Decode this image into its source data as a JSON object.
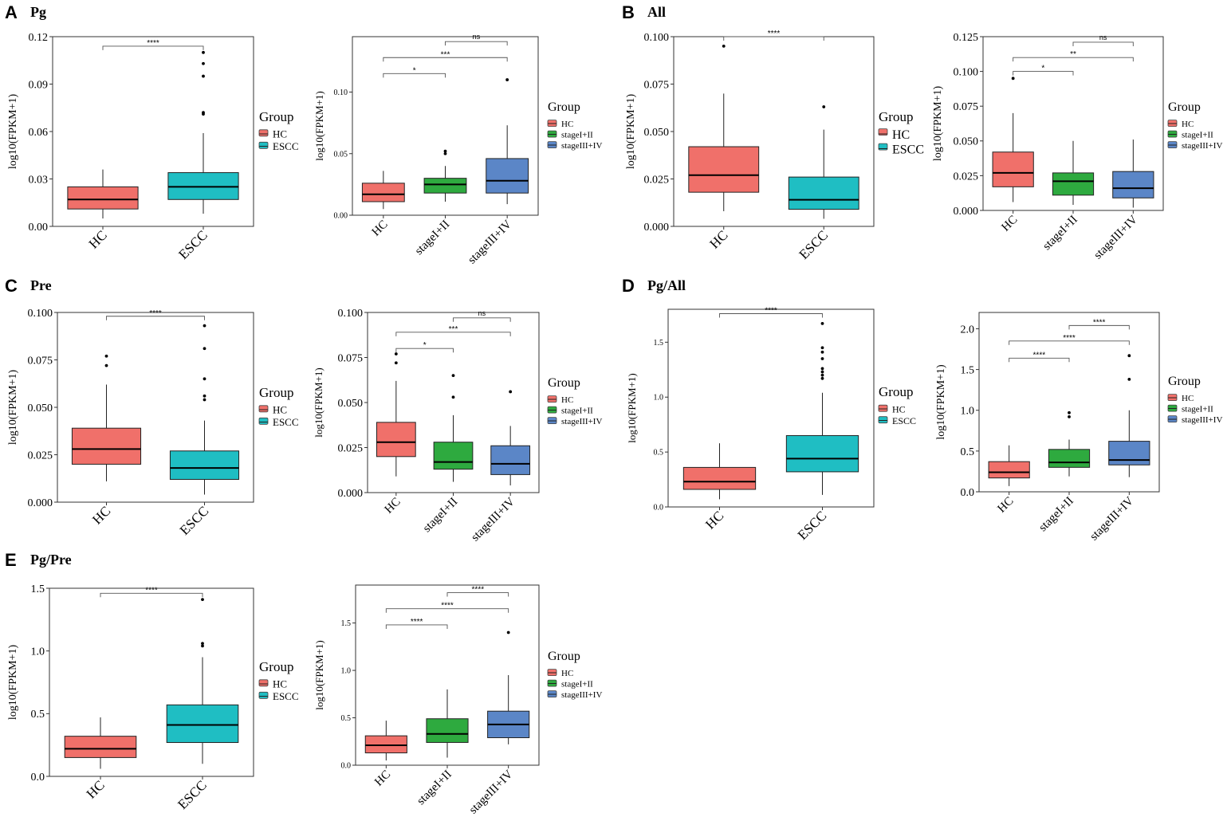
{
  "colors": {
    "HC": "#F0706A",
    "ESCC": "#1FBEC3",
    "stageI+II": "#2EAA3F",
    "stageIII+IV": "#5B86C7"
  },
  "panels": [
    {
      "letter": "A",
      "title": "Pg"
    },
    {
      "letter": "B",
      "title": "All"
    },
    {
      "letter": "C",
      "title": "Pre"
    },
    {
      "letter": "D",
      "title": "Pg/All"
    },
    {
      "letter": "E",
      "title": "Pg/Pre"
    }
  ],
  "chart_data": [
    {
      "id": "A-group",
      "panel": "A",
      "type": "box",
      "ylabel": "log10(FPKM+1)",
      "legend_title": "Group",
      "legend": [
        "HC",
        "ESCC"
      ],
      "categories": [
        "HC",
        "ESCC"
      ],
      "ylim": [
        0,
        0.12
      ],
      "yticks": [
        0,
        0.03,
        0.06,
        0.09,
        0.12
      ],
      "ytick_labels": [
        "0.00",
        "0.03",
        "0.06",
        "0.09",
        "0.12"
      ],
      "boxes": [
        {
          "group": "HC",
          "whisker_low": 0.005,
          "q1": 0.011,
          "median": 0.017,
          "q3": 0.025,
          "whisker_high": 0.036,
          "outliers": []
        },
        {
          "group": "ESCC",
          "whisker_low": 0.008,
          "q1": 0.017,
          "median": 0.025,
          "q3": 0.034,
          "whisker_high": 0.059,
          "outliers": [
            0.071,
            0.072,
            0.095,
            0.103,
            0.11
          ]
        }
      ],
      "comparisons": [
        {
          "from": "HC",
          "to": "ESCC",
          "y": 0.114,
          "label": "****"
        }
      ]
    },
    {
      "id": "A-stage",
      "panel": "A",
      "type": "box",
      "ylabel": "log10(FPKM+1)",
      "legend_title": "Group",
      "legend": [
        "HC",
        "stageI+II",
        "stageIII+IV"
      ],
      "categories": [
        "HC",
        "stageI+II",
        "stageIII+IV"
      ],
      "ylim": [
        0,
        0.145
      ],
      "yticks": [
        0,
        0.05,
        0.1
      ],
      "ytick_labels": [
        "0.00",
        "0.05",
        "0.10"
      ],
      "boxes": [
        {
          "group": "HC",
          "whisker_low": 0.005,
          "q1": 0.011,
          "median": 0.017,
          "q3": 0.026,
          "whisker_high": 0.036,
          "outliers": []
        },
        {
          "group": "stageI+II",
          "whisker_low": 0.011,
          "q1": 0.018,
          "median": 0.025,
          "q3": 0.03,
          "whisker_high": 0.04,
          "outliers": [
            0.05,
            0.052
          ]
        },
        {
          "group": "stageIII+IV",
          "whisker_low": 0.009,
          "q1": 0.018,
          "median": 0.028,
          "q3": 0.046,
          "whisker_high": 0.073,
          "outliers": [
            0.11
          ]
        }
      ],
      "comparisons": [
        {
          "from": "HC",
          "to": "stageI+II",
          "y": 0.115,
          "label": "*"
        },
        {
          "from": "HC",
          "to": "stageIII+IV",
          "y": 0.128,
          "label": "***"
        },
        {
          "from": "stageI+II",
          "to": "stageIII+IV",
          "y": 0.141,
          "label": "ns"
        }
      ]
    },
    {
      "id": "B-group",
      "panel": "B",
      "type": "box",
      "ylabel": "log10(FPKM+1)",
      "legend_title": "Group",
      "legend": [
        "HC",
        "ESCC"
      ],
      "categories": [
        "HC",
        "ESCC"
      ],
      "ylim": [
        0,
        0.1
      ],
      "yticks": [
        0,
        0.025,
        0.05,
        0.075,
        0.1
      ],
      "ytick_labels": [
        "0.000",
        "0.025",
        "0.050",
        "0.075",
        "0.100"
      ],
      "boxes": [
        {
          "group": "HC",
          "whisker_low": 0.008,
          "q1": 0.018,
          "median": 0.027,
          "q3": 0.042,
          "whisker_high": 0.07,
          "outliers": [
            0.095
          ]
        },
        {
          "group": "ESCC",
          "whisker_low": 0.004,
          "q1": 0.009,
          "median": 0.014,
          "q3": 0.026,
          "whisker_high": 0.051,
          "outliers": [
            0.063
          ]
        }
      ],
      "comparisons": [
        {
          "from": "HC",
          "to": "ESCC",
          "y": 0.1,
          "label": "****"
        }
      ]
    },
    {
      "id": "B-stage",
      "panel": "B",
      "type": "box",
      "ylabel": "log10(FPKM+1)",
      "legend_title": "Group",
      "legend": [
        "HC",
        "stageI+II",
        "stageIII+IV"
      ],
      "categories": [
        "HC",
        "stageI+II",
        "stageIII+IV"
      ],
      "ylim": [
        0,
        0.125
      ],
      "yticks": [
        0,
        0.025,
        0.05,
        0.075,
        0.1,
        0.125
      ],
      "ytick_labels": [
        "0.000",
        "0.025",
        "0.050",
        "0.075",
        "0.100",
        "0.125"
      ],
      "boxes": [
        {
          "group": "HC",
          "whisker_low": 0.006,
          "q1": 0.017,
          "median": 0.027,
          "q3": 0.042,
          "whisker_high": 0.07,
          "outliers": [
            0.095
          ]
        },
        {
          "group": "stageI+II",
          "whisker_low": 0.004,
          "q1": 0.011,
          "median": 0.021,
          "q3": 0.027,
          "whisker_high": 0.05,
          "outliers": []
        },
        {
          "group": "stageIII+IV",
          "whisker_low": 0.002,
          "q1": 0.009,
          "median": 0.016,
          "q3": 0.028,
          "whisker_high": 0.051,
          "outliers": []
        }
      ],
      "comparisons": [
        {
          "from": "HC",
          "to": "stageI+II",
          "y": 0.1,
          "label": "*"
        },
        {
          "from": "HC",
          "to": "stageIII+IV",
          "y": 0.11,
          "label": "**"
        },
        {
          "from": "stageI+II",
          "to": "stageIII+IV",
          "y": 0.121,
          "label": "ns"
        }
      ]
    },
    {
      "id": "C-group",
      "panel": "C",
      "type": "box",
      "ylabel": "log10(FPKM+1)",
      "legend_title": "Group",
      "legend": [
        "HC",
        "ESCC"
      ],
      "categories": [
        "HC",
        "ESCC"
      ],
      "ylim": [
        0,
        0.1
      ],
      "yticks": [
        0,
        0.025,
        0.05,
        0.075,
        0.1
      ],
      "ytick_labels": [
        "0.000",
        "0.025",
        "0.050",
        "0.075",
        "0.100"
      ],
      "boxes": [
        {
          "group": "HC",
          "whisker_low": 0.011,
          "q1": 0.02,
          "median": 0.028,
          "q3": 0.039,
          "whisker_high": 0.062,
          "outliers": [
            0.072,
            0.077
          ]
        },
        {
          "group": "ESCC",
          "whisker_low": 0.004,
          "q1": 0.012,
          "median": 0.018,
          "q3": 0.027,
          "whisker_high": 0.043,
          "outliers": [
            0.054,
            0.056,
            0.065,
            0.081,
            0.093
          ]
        }
      ],
      "comparisons": [
        {
          "from": "HC",
          "to": "ESCC",
          "y": 0.098,
          "label": "****"
        }
      ]
    },
    {
      "id": "C-stage",
      "panel": "C",
      "type": "box",
      "ylabel": "log10(FPKM+1)",
      "legend_title": "Group",
      "legend": [
        "HC",
        "stageI+II",
        "stageIII+IV"
      ],
      "categories": [
        "HC",
        "stageI+II",
        "stageIII+IV"
      ],
      "ylim": [
        0,
        0.1
      ],
      "yticks": [
        0,
        0.025,
        0.05,
        0.075,
        0.1
      ],
      "ytick_labels": [
        "0.000",
        "0.025",
        "0.050",
        "0.075",
        "0.100"
      ],
      "boxes": [
        {
          "group": "HC",
          "whisker_low": 0.009,
          "q1": 0.02,
          "median": 0.028,
          "q3": 0.039,
          "whisker_high": 0.062,
          "outliers": [
            0.072,
            0.077
          ]
        },
        {
          "group": "stageI+II",
          "whisker_low": 0.006,
          "q1": 0.013,
          "median": 0.017,
          "q3": 0.028,
          "whisker_high": 0.043,
          "outliers": [
            0.053,
            0.065
          ]
        },
        {
          "group": "stageIII+IV",
          "whisker_low": 0.004,
          "q1": 0.01,
          "median": 0.016,
          "q3": 0.026,
          "whisker_high": 0.037,
          "outliers": [
            0.056
          ]
        }
      ],
      "comparisons": [
        {
          "from": "HC",
          "to": "stageI+II",
          "y": 0.08,
          "label": "*"
        },
        {
          "from": "HC",
          "to": "stageIII+IV",
          "y": 0.089,
          "label": "***"
        },
        {
          "from": "stageI+II",
          "to": "stageIII+IV",
          "y": 0.097,
          "label": "ns"
        }
      ]
    },
    {
      "id": "D-group",
      "panel": "D",
      "type": "box",
      "ylabel": "log10(FPKM+1)",
      "legend_title": "Group",
      "legend": [
        "HC",
        "ESCC"
      ],
      "categories": [
        "HC",
        "ESCC"
      ],
      "ylim": [
        0,
        1.8
      ],
      "yticks": [
        0,
        0.5,
        1.0,
        1.5
      ],
      "ytick_labels": [
        "0.0",
        "0.5",
        "1.0",
        "1.5"
      ],
      "boxes": [
        {
          "group": "HC",
          "whisker_low": 0.07,
          "q1": 0.16,
          "median": 0.23,
          "q3": 0.36,
          "whisker_high": 0.58,
          "outliers": []
        },
        {
          "group": "ESCC",
          "whisker_low": 0.11,
          "q1": 0.32,
          "median": 0.44,
          "q3": 0.65,
          "whisker_high": 1.04,
          "outliers": [
            1.17,
            1.2,
            1.23,
            1.26,
            1.35,
            1.41,
            1.45,
            1.67
          ]
        }
      ],
      "comparisons": [
        {
          "from": "HC",
          "to": "ESCC",
          "y": 1.76,
          "label": "****"
        }
      ]
    },
    {
      "id": "D-stage",
      "panel": "D",
      "type": "box",
      "ylabel": "log10(FPKM+1)",
      "legend_title": "Group",
      "legend": [
        "HC",
        "stageI+II",
        "stageIII+IV"
      ],
      "categories": [
        "HC",
        "stageI+II",
        "stageIII+IV"
      ],
      "ylim": [
        0,
        2.2
      ],
      "yticks": [
        0,
        0.5,
        1.0,
        1.5,
        2.0
      ],
      "ytick_labels": [
        "0.0",
        "0.5",
        "1.0",
        "1.5",
        "2.0"
      ],
      "boxes": [
        {
          "group": "HC",
          "whisker_low": 0.07,
          "q1": 0.17,
          "median": 0.24,
          "q3": 0.37,
          "whisker_high": 0.57,
          "outliers": []
        },
        {
          "group": "stageI+II",
          "whisker_low": 0.19,
          "q1": 0.3,
          "median": 0.36,
          "q3": 0.52,
          "whisker_high": 0.64,
          "outliers": [
            0.92,
            0.97
          ]
        },
        {
          "group": "stageIII+IV",
          "whisker_low": 0.18,
          "q1": 0.33,
          "median": 0.39,
          "q3": 0.62,
          "whisker_high": 1.0,
          "outliers": [
            1.38,
            1.67
          ]
        }
      ],
      "comparisons": [
        {
          "from": "HC",
          "to": "stageI+II",
          "y": 1.64,
          "label": "****"
        },
        {
          "from": "HC",
          "to": "stageIII+IV",
          "y": 1.85,
          "label": "****"
        },
        {
          "from": "stageI+II",
          "to": "stageIII+IV",
          "y": 2.04,
          "label": "****"
        }
      ]
    },
    {
      "id": "E-group",
      "panel": "E",
      "type": "box",
      "ylabel": "log10(FPKM+1)",
      "legend_title": "Group",
      "legend": [
        "HC",
        "ESCC"
      ],
      "categories": [
        "HC",
        "ESCC"
      ],
      "ylim": [
        0,
        1.5
      ],
      "yticks": [
        0,
        0.5,
        1.0,
        1.5
      ],
      "ytick_labels": [
        "0.0",
        "0.5",
        "1.0",
        "1.5"
      ],
      "boxes": [
        {
          "group": "HC",
          "whisker_low": 0.06,
          "q1": 0.15,
          "median": 0.22,
          "q3": 0.32,
          "whisker_high": 0.47,
          "outliers": []
        },
        {
          "group": "ESCC",
          "whisker_low": 0.1,
          "q1": 0.27,
          "median": 0.41,
          "q3": 0.57,
          "whisker_high": 0.95,
          "outliers": [
            1.04,
            1.06,
            1.41
          ]
        }
      ],
      "comparisons": [
        {
          "from": "HC",
          "to": "ESCC",
          "y": 1.46,
          "label": "****"
        }
      ]
    },
    {
      "id": "E-stage",
      "panel": "E",
      "type": "box",
      "ylabel": "log10(FPKM+1)",
      "legend_title": "Group",
      "legend": [
        "HC",
        "stageI+II",
        "stageIII+IV"
      ],
      "categories": [
        "HC",
        "stageI+II",
        "stageIII+IV"
      ],
      "ylim": [
        0,
        1.9
      ],
      "yticks": [
        0,
        0.5,
        1.0,
        1.5
      ],
      "ytick_labels": [
        "0.0",
        "0.5",
        "1.0",
        "1.5"
      ],
      "boxes": [
        {
          "group": "HC",
          "whisker_low": 0.05,
          "q1": 0.13,
          "median": 0.21,
          "q3": 0.31,
          "whisker_high": 0.47,
          "outliers": []
        },
        {
          "group": "stageI+II",
          "whisker_low": 0.08,
          "q1": 0.24,
          "median": 0.33,
          "q3": 0.49,
          "whisker_high": 0.8,
          "outliers": []
        },
        {
          "group": "stageIII+IV",
          "whisker_low": 0.22,
          "q1": 0.29,
          "median": 0.43,
          "q3": 0.57,
          "whisker_high": 0.95,
          "outliers": [
            1.4
          ]
        }
      ],
      "comparisons": [
        {
          "from": "HC",
          "to": "stageI+II",
          "y": 1.48,
          "label": "****"
        },
        {
          "from": "HC",
          "to": "stageIII+IV",
          "y": 1.65,
          "label": "****"
        },
        {
          "from": "stageI+II",
          "to": "stageIII+IV",
          "y": 1.82,
          "label": "****"
        }
      ]
    }
  ]
}
